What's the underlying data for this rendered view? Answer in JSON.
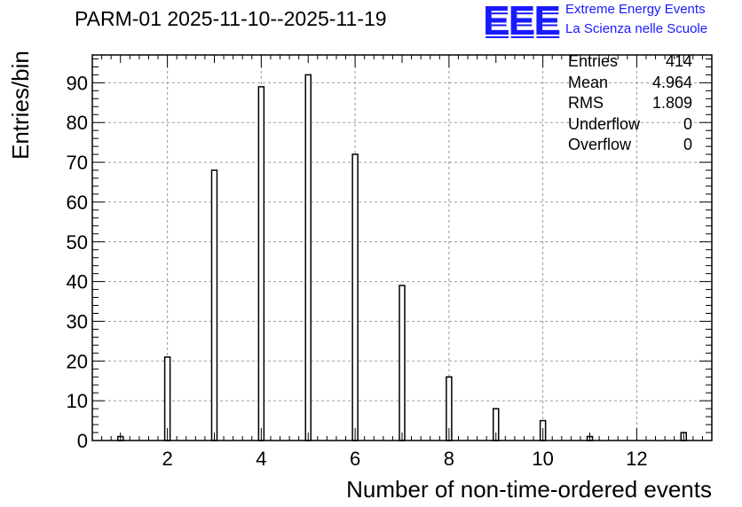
{
  "title": "PARM-01 2025-11-10--2025-11-19",
  "logo": {
    "mark": "EEE",
    "line1": "Extreme Energy Events",
    "line2": "La Scienza nelle Scuole",
    "color": "#1a1aff"
  },
  "stats": [
    {
      "label": "Entries",
      "value": "414"
    },
    {
      "label": "Mean",
      "value": "4.964"
    },
    {
      "label": "RMS",
      "value": "1.809"
    },
    {
      "label": "Underflow",
      "value": "0"
    },
    {
      "label": "Overflow",
      "value": "0"
    }
  ],
  "chart_data": {
    "type": "bar",
    "title": "PARM-01 2025-11-10--2025-11-19",
    "xlabel": "Number of non-time-ordered events",
    "ylabel": "Entries/bin",
    "xlim": [
      0.4,
      13.6
    ],
    "ylim": [
      0,
      97
    ],
    "x_ticks": [
      2,
      4,
      6,
      8,
      10,
      12
    ],
    "y_ticks": [
      0,
      10,
      20,
      30,
      40,
      50,
      60,
      70,
      80,
      90
    ],
    "grid": true,
    "bar_color": "#ffffff",
    "bar_edge_color": "#000000",
    "x": [
      1,
      2,
      3,
      4,
      5,
      6,
      7,
      8,
      9,
      10,
      11,
      12,
      13
    ],
    "values": [
      1,
      21,
      68,
      89,
      92,
      72,
      39,
      16,
      8,
      5,
      1,
      0,
      2
    ]
  }
}
